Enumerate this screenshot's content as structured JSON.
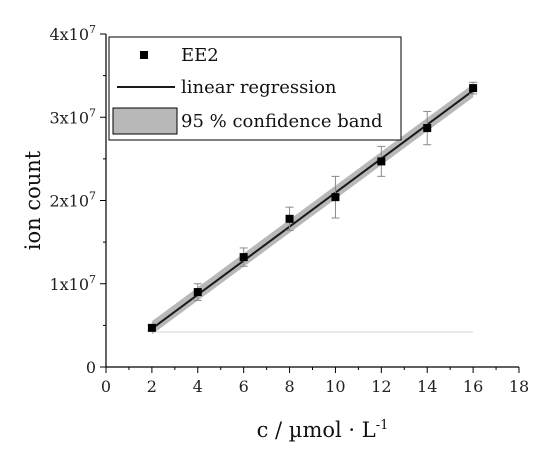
{
  "chart_data": {
    "type": "scatter",
    "xlabel": "c / µmol · L",
    "xlabel_superscript": "-1",
    "ylabel": "ion count",
    "xlim": [
      0,
      18
    ],
    "ylim": [
      0,
      40000000
    ],
    "xticks": [
      "0",
      "2",
      "4",
      "6",
      "8",
      "10",
      "12",
      "14",
      "16",
      "18"
    ],
    "yticks": [
      {
        "value": 0,
        "mantissa": "0",
        "exponent": ""
      },
      {
        "value": 10000000,
        "mantissa": "1x10",
        "exponent": "7"
      },
      {
        "value": 20000000,
        "mantissa": "2x10",
        "exponent": "7"
      },
      {
        "value": 30000000,
        "mantissa": "3x10",
        "exponent": "7"
      },
      {
        "value": 40000000,
        "mantissa": "4x10",
        "exponent": "7"
      }
    ],
    "grid": false,
    "legend_position": "top-left",
    "legend": [
      {
        "label": "EE2",
        "kind": "marker"
      },
      {
        "label": "linear regression",
        "kind": "line"
      },
      {
        "label": "95 % confidence band",
        "kind": "band"
      }
    ],
    "series": [
      {
        "name": "EE2",
        "x": [
          2,
          4,
          6,
          8,
          10,
          12,
          14,
          16
        ],
        "y": [
          4700000,
          9000000,
          13200000,
          17800000,
          20400000,
          24700000,
          28700000,
          33500000
        ],
        "yerr": [
          300000,
          1000000,
          1100000,
          1400000,
          2500000,
          1800000,
          2000000,
          700000
        ]
      }
    ],
    "regression": {
      "x": [
        2,
        16
      ],
      "y": [
        4600000,
        33200000
      ]
    },
    "confidence_band": {
      "x": [
        2,
        16
      ],
      "lower": [
        3900000,
        32400000
      ],
      "upper": [
        5500000,
        34000000
      ]
    },
    "baseline_line": {
      "x": [
        2,
        16
      ],
      "y": [
        4200000,
        4200000
      ]
    },
    "colors": {
      "marker": "#000000",
      "regression": "#1a1a1a",
      "band": "#b8b8b8",
      "errorbar": "#8a8a8a",
      "baseline": "#d4d4d4"
    }
  }
}
